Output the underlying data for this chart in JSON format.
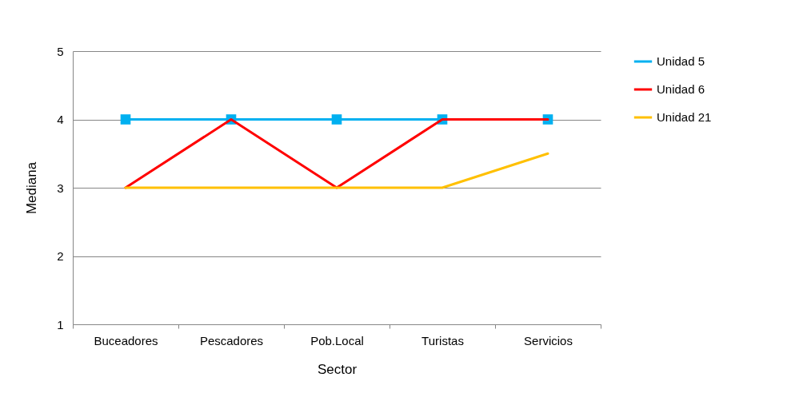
{
  "chart_data": {
    "type": "line",
    "xlabel": "Sector",
    "ylabel": "Mediana",
    "categories": [
      "Buceadores",
      "Pescadores",
      "Pob.Local",
      "Turistas",
      "Servicios"
    ],
    "series": [
      {
        "name": "Unidad 5",
        "color": "#00b0f0",
        "values": [
          4,
          4,
          4,
          4,
          4
        ],
        "marker": "square"
      },
      {
        "name": "Unidad 6",
        "color": "#ff0000",
        "values": [
          3,
          4,
          3,
          4,
          4
        ]
      },
      {
        "name": "Unidad 21",
        "color": "#ffc000",
        "values": [
          3,
          3,
          3,
          3,
          3.5
        ]
      }
    ],
    "ylim": [
      1,
      5
    ],
    "yticks": [
      1,
      2,
      3,
      4,
      5
    ],
    "grid": "y",
    "legend": "right"
  }
}
